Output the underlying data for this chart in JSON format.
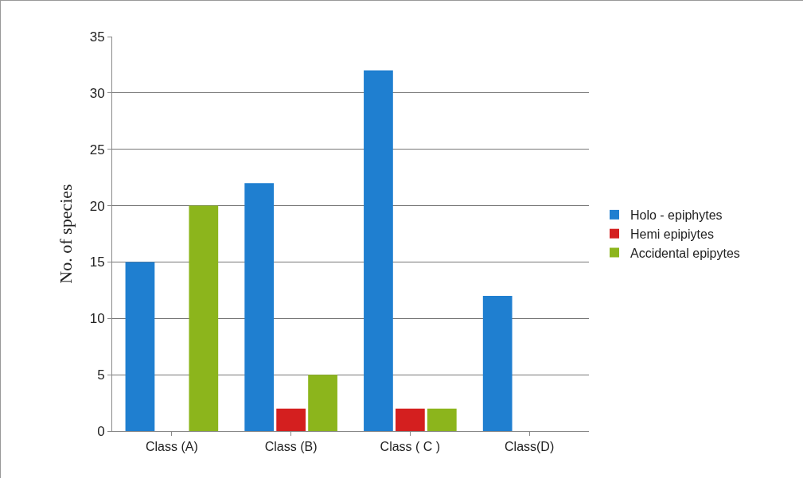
{
  "chart_data": {
    "type": "bar",
    "ylabel": "No. of species",
    "categories": [
      "Class (A)",
      "Class (B)",
      "Class ( C )",
      "Class(D)"
    ],
    "series": [
      {
        "name": "Holo - epiphytes",
        "color": "#1f7fd0",
        "values": [
          15,
          22,
          32,
          12
        ]
      },
      {
        "name": "Hemi epipiytes",
        "color": "#d41f1f",
        "values": [
          0,
          2,
          2,
          0
        ]
      },
      {
        "name": "Accidental epipytes",
        "color": "#8cb51c",
        "values": [
          20,
          5,
          2,
          0
        ]
      }
    ],
    "ylim": [
      0,
      35
    ],
    "yticks": [
      0,
      5,
      10,
      15,
      20,
      25,
      30,
      35
    ],
    "grid": "y",
    "legend": "right"
  }
}
